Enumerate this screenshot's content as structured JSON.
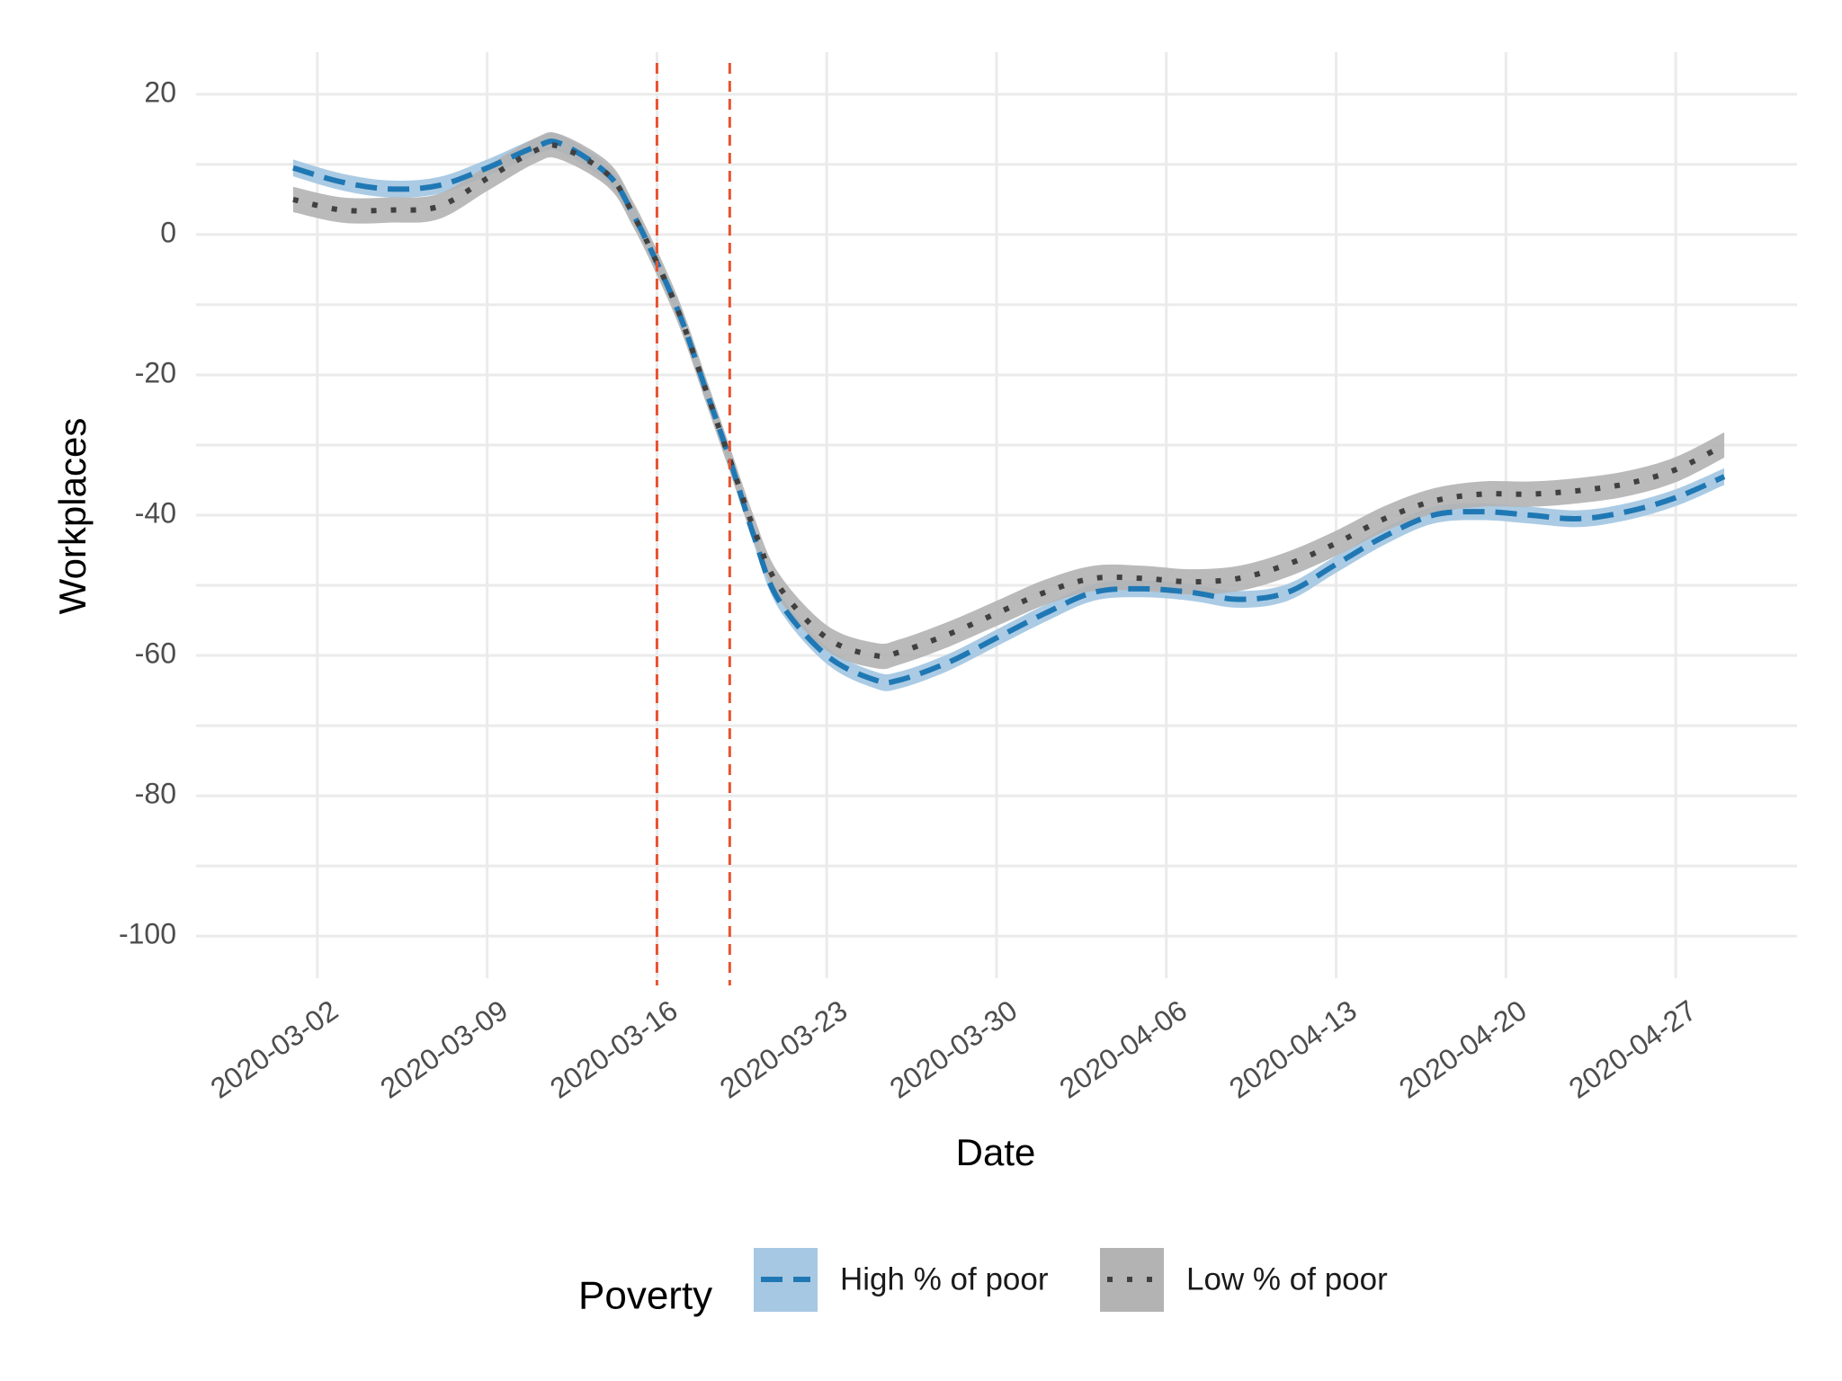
{
  "chart_data": {
    "type": "line",
    "xlabel": "Date",
    "ylabel": "Workplaces",
    "x_ticks": [
      "2020-03-02",
      "2020-03-09",
      "2020-03-16",
      "2020-03-23",
      "2020-03-30",
      "2020-04-06",
      "2020-04-13",
      "2020-04-20",
      "2020-04-27"
    ],
    "y_ticks": [
      20,
      0,
      -20,
      -40,
      -60,
      -80,
      -100
    ],
    "xlim": [
      "2020-02-26",
      "2020-05-02"
    ],
    "ylim": [
      -106,
      26
    ],
    "vlines": [
      "2020-03-16",
      "2020-03-19"
    ],
    "vline_color": "#e8532f",
    "grid": true,
    "legend": {
      "title": "Poverty",
      "position": "bottom",
      "entries": [
        "High % of poor",
        "Low % of poor"
      ]
    },
    "series": [
      {
        "name": "High % of poor",
        "style": "dashed",
        "color": "#1f78b4",
        "band_color": "#a6c8e3",
        "x": [
          "2020-03-01",
          "2020-03-03",
          "2020-03-05",
          "2020-03-07",
          "2020-03-09",
          "2020-03-11",
          "2020-03-12",
          "2020-03-14",
          "2020-03-15",
          "2020-03-16",
          "2020-03-17",
          "2020-03-18",
          "2020-03-19",
          "2020-03-20",
          "2020-03-21",
          "2020-03-23",
          "2020-03-25",
          "2020-03-26",
          "2020-03-28",
          "2020-03-30",
          "2020-04-01",
          "2020-04-03",
          "2020-04-05",
          "2020-04-07",
          "2020-04-09",
          "2020-04-11",
          "2020-04-13",
          "2020-04-15",
          "2020-04-17",
          "2020-04-19",
          "2020-04-21",
          "2020-04-23",
          "2020-04-25",
          "2020-04-27",
          "2020-04-29"
        ],
        "y": [
          9.5,
          7.5,
          6.5,
          7,
          9.5,
          12.5,
          13,
          8.5,
          3,
          -4,
          -12,
          -22,
          -32,
          -43,
          -52,
          -60,
          -63.5,
          -63.5,
          -61,
          -57.5,
          -54,
          -51,
          -50.5,
          -51,
          -52,
          -51,
          -47,
          -43,
          -40,
          -39.5,
          -40,
          -40.5,
          -39.5,
          -37.5,
          -34.5
        ],
        "band": 1.2
      },
      {
        "name": "Low % of poor",
        "style": "dotted",
        "color": "#404040",
        "band_color": "#b3b3b3",
        "x": [
          "2020-03-01",
          "2020-03-03",
          "2020-03-05",
          "2020-03-07",
          "2020-03-09",
          "2020-03-11",
          "2020-03-12",
          "2020-03-14",
          "2020-03-15",
          "2020-03-16",
          "2020-03-17",
          "2020-03-18",
          "2020-03-19",
          "2020-03-20",
          "2020-03-21",
          "2020-03-23",
          "2020-03-25",
          "2020-03-26",
          "2020-03-28",
          "2020-03-30",
          "2020-04-01",
          "2020-04-03",
          "2020-04-05",
          "2020-04-07",
          "2020-04-09",
          "2020-04-11",
          "2020-04-13",
          "2020-04-15",
          "2020-04-17",
          "2020-04-19",
          "2020-04-21",
          "2020-04-23",
          "2020-04-25",
          "2020-04-27",
          "2020-04-29"
        ],
        "y": [
          5,
          3.5,
          3.5,
          4,
          8,
          12,
          12.5,
          8.5,
          3,
          -4,
          -12,
          -22,
          -32,
          -42,
          -50,
          -57.5,
          -60,
          -59.5,
          -57,
          -54,
          -51,
          -49,
          -49,
          -49.5,
          -49,
          -47,
          -44,
          -40.5,
          -38,
          -37,
          -37,
          -36.5,
          -35.5,
          -33.5,
          -30
        ],
        "band": 1.8
      }
    ]
  }
}
